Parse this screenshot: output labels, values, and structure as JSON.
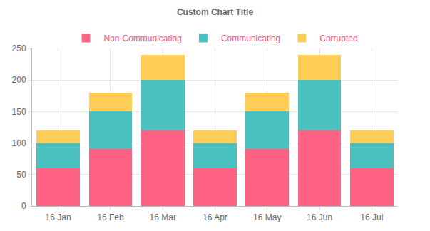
{
  "chart_data": {
    "type": "bar",
    "title": "Custom Chart Title",
    "categories": [
      "16 Jan",
      "16 Feb",
      "16 Mar",
      "16 Apr",
      "16 May",
      "16 Jun",
      "16 Jul"
    ],
    "series": [
      {
        "name": "Non-Communicating",
        "color": "#ff6384",
        "values": [
          60,
          90,
          120,
          60,
          90,
          120,
          60
        ]
      },
      {
        "name": "Communicating",
        "color": "#4bc0c0",
        "values": [
          40,
          60,
          80,
          40,
          60,
          80,
          40
        ]
      },
      {
        "name": "Corrupted",
        "color": "#ffcd56",
        "values": [
          20,
          30,
          40,
          20,
          30,
          40,
          20
        ]
      }
    ],
    "stacked": true,
    "ylim": [
      0,
      250
    ],
    "yticks": [
      0,
      50,
      100,
      150,
      200,
      250
    ],
    "grid": true,
    "legend": "top"
  }
}
